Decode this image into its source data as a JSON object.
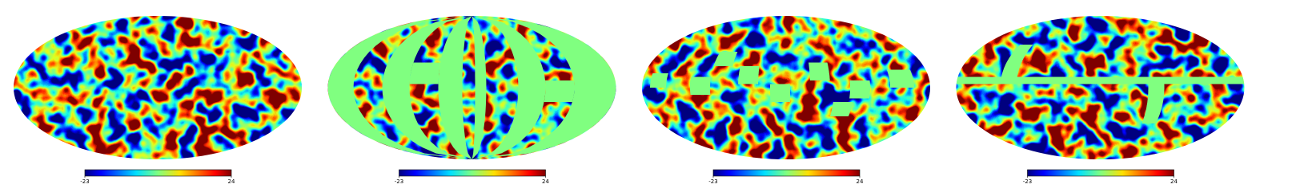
{
  "panels": [
    {
      "colorbar": {
        "min": -23,
        "max": 24
      }
    },
    {
      "colorbar": {
        "min": -23,
        "max": 24
      }
    },
    {
      "colorbar": {
        "min": -23,
        "max": 24
      }
    },
    {
      "colorbar": {
        "min": -23,
        "max": 24
      }
    }
  ]
}
